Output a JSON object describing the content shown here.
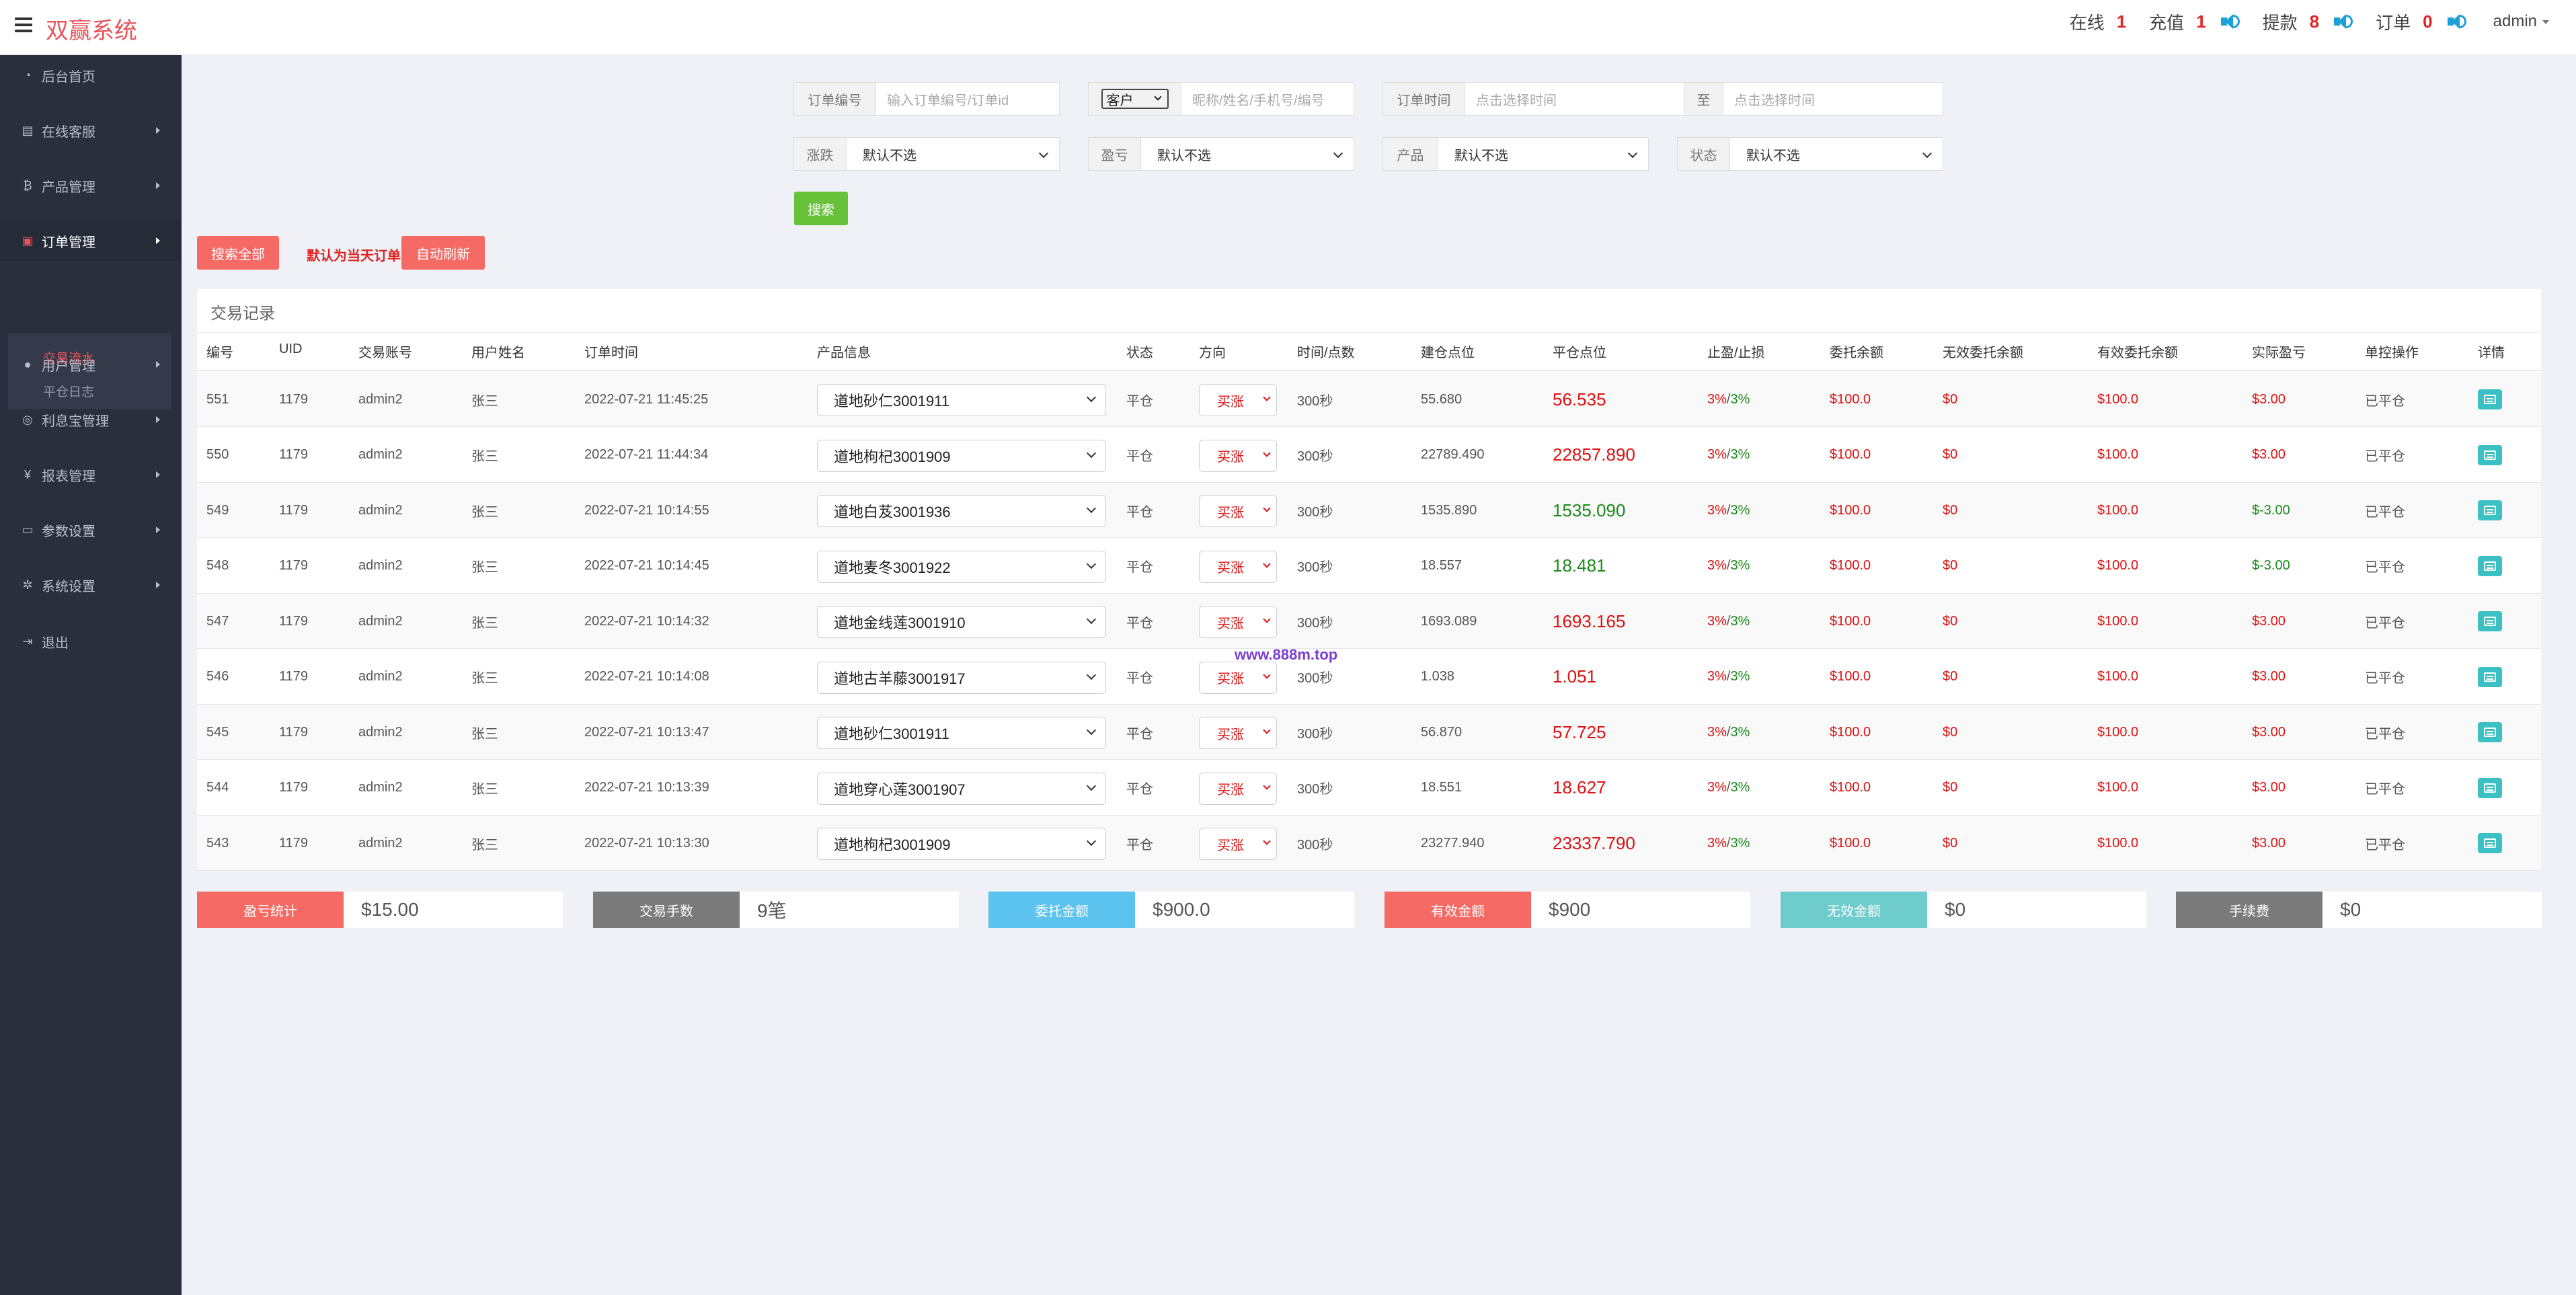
{
  "header": {
    "brand": "双赢系统",
    "stats": [
      {
        "label": "在线",
        "value": "1",
        "speaker": false
      },
      {
        "label": "充值",
        "value": "1",
        "speaker": true
      },
      {
        "label": "提款",
        "value": "8",
        "speaker": true
      },
      {
        "label": "订单",
        "value": "0",
        "speaker": true
      }
    ],
    "user": "admin"
  },
  "sidebar": {
    "items": [
      {
        "label": "后台首页",
        "icon": "dashboard-icon"
      },
      {
        "label": "在线客服",
        "icon": "book-icon"
      },
      {
        "label": "产品管理",
        "icon": "bitcoin-icon"
      },
      {
        "label": "订单管理",
        "icon": "copy-icon"
      },
      {
        "label": "用户管理",
        "icon": "user-icon"
      },
      {
        "label": "利息宝管理",
        "icon": "globe-icon"
      },
      {
        "label": "报表管理",
        "icon": "yen-icon"
      },
      {
        "label": "参数设置",
        "icon": "file-icon"
      },
      {
        "label": "系统设置",
        "icon": "cogs-icon"
      },
      {
        "label": "退出",
        "icon": "signout-icon"
      }
    ],
    "submenu": [
      "交易流水",
      "平仓日志"
    ]
  },
  "filters": {
    "order_no_label": "订单编号",
    "order_no_placeholder": "输入订单编号/订单id",
    "customer_select": "客户",
    "customer_placeholder": "昵称/姓名/手机号/编号",
    "order_time_label": "订单时间",
    "time_start_placeholder": "点击选择时间",
    "to_label": "至",
    "time_end_placeholder": "点击选择时间",
    "updown_label": "涨跌",
    "updown_value": "默认不选",
    "profit_label": "盈亏",
    "profit_value": "默认不选",
    "product_label": "产品",
    "product_value": "默认不选",
    "status_label": "状态",
    "status_value": "默认不选",
    "search_button": "搜索",
    "search_all_button": "搜索全部",
    "default_note": "默认为当天订单",
    "auto_refresh_button": "自动刷新"
  },
  "table": {
    "title": "交易记录",
    "headers": [
      "编号",
      "UID",
      "交易账号",
      "用户姓名",
      "订单时间",
      "产品信息",
      "状态",
      "方向",
      "时间/点数",
      "建仓点位",
      "平仓点位",
      "止盈/止损",
      "委托余额",
      "无效委托余额",
      "有效委托余额",
      "实际盈亏",
      "单控操作",
      "详情"
    ],
    "rows": [
      {
        "id": "551",
        "uid": "1179",
        "account": "admin2",
        "name": "张三",
        "time": "2022-07-21 11:45:25",
        "product": "道地砂仁3001911",
        "status": "平仓",
        "direction": "买涨",
        "duration": "300秒",
        "open": "55.680",
        "close": "56.535",
        "close_color": "red",
        "tp_sl_a": "3%",
        "tp_sl_b": "3%",
        "entrust": "$100.0",
        "invalid": "$0",
        "valid": "$100.0",
        "pnl": "$3.00",
        "pnl_color": "red",
        "op": "已平仓"
      },
      {
        "id": "550",
        "uid": "1179",
        "account": "admin2",
        "name": "张三",
        "time": "2022-07-21 11:44:34",
        "product": "道地枸杞3001909",
        "status": "平仓",
        "direction": "买涨",
        "duration": "300秒",
        "open": "22789.490",
        "close": "22857.890",
        "close_color": "red",
        "tp_sl_a": "3%",
        "tp_sl_b": "3%",
        "entrust": "$100.0",
        "invalid": "$0",
        "valid": "$100.0",
        "pnl": "$3.00",
        "pnl_color": "red",
        "op": "已平仓"
      },
      {
        "id": "549",
        "uid": "1179",
        "account": "admin2",
        "name": "张三",
        "time": "2022-07-21 10:14:55",
        "product": "道地白芨3001936",
        "status": "平仓",
        "direction": "买涨",
        "duration": "300秒",
        "open": "1535.890",
        "close": "1535.090",
        "close_color": "green",
        "tp_sl_a": "3%",
        "tp_sl_b": "3%",
        "entrust": "$100.0",
        "invalid": "$0",
        "valid": "$100.0",
        "pnl": "$-3.00",
        "pnl_color": "green",
        "op": "已平仓"
      },
      {
        "id": "548",
        "uid": "1179",
        "account": "admin2",
        "name": "张三",
        "time": "2022-07-21 10:14:45",
        "product": "道地麦冬3001922",
        "status": "平仓",
        "direction": "买涨",
        "duration": "300秒",
        "open": "18.557",
        "close": "18.481",
        "close_color": "green",
        "tp_sl_a": "3%",
        "tp_sl_b": "3%",
        "entrust": "$100.0",
        "invalid": "$0",
        "valid": "$100.0",
        "pnl": "$-3.00",
        "pnl_color": "green",
        "op": "已平仓"
      },
      {
        "id": "547",
        "uid": "1179",
        "account": "admin2",
        "name": "张三",
        "time": "2022-07-21 10:14:32",
        "product": "道地金线莲3001910",
        "status": "平仓",
        "direction": "买涨",
        "duration": "300秒",
        "open": "1693.089",
        "close": "1693.165",
        "close_color": "red",
        "tp_sl_a": "3%",
        "tp_sl_b": "3%",
        "entrust": "$100.0",
        "invalid": "$0",
        "valid": "$100.0",
        "pnl": "$3.00",
        "pnl_color": "red",
        "op": "已平仓"
      },
      {
        "id": "546",
        "uid": "1179",
        "account": "admin2",
        "name": "张三",
        "time": "2022-07-21 10:14:08",
        "product": "道地古羊藤3001917",
        "status": "平仓",
        "direction": "买涨",
        "duration": "300秒",
        "open": "1.038",
        "close": "1.051",
        "close_color": "red",
        "tp_sl_a": "3%",
        "tp_sl_b": "3%",
        "entrust": "$100.0",
        "invalid": "$0",
        "valid": "$100.0",
        "pnl": "$3.00",
        "pnl_color": "red",
        "op": "已平仓"
      },
      {
        "id": "545",
        "uid": "1179",
        "account": "admin2",
        "name": "张三",
        "time": "2022-07-21 10:13:47",
        "product": "道地砂仁3001911",
        "status": "平仓",
        "direction": "买涨",
        "duration": "300秒",
        "open": "56.870",
        "close": "57.725",
        "close_color": "red",
        "tp_sl_a": "3%",
        "tp_sl_b": "3%",
        "entrust": "$100.0",
        "invalid": "$0",
        "valid": "$100.0",
        "pnl": "$3.00",
        "pnl_color": "red",
        "op": "已平仓"
      },
      {
        "id": "544",
        "uid": "1179",
        "account": "admin2",
        "name": "张三",
        "time": "2022-07-21 10:13:39",
        "product": "道地穿心莲3001907",
        "status": "平仓",
        "direction": "买涨",
        "duration": "300秒",
        "open": "18.551",
        "close": "18.627",
        "close_color": "red",
        "tp_sl_a": "3%",
        "tp_sl_b": "3%",
        "entrust": "$100.0",
        "invalid": "$0",
        "valid": "$100.0",
        "pnl": "$3.00",
        "pnl_color": "red",
        "op": "已平仓"
      },
      {
        "id": "543",
        "uid": "1179",
        "account": "admin2",
        "name": "张三",
        "time": "2022-07-21 10:13:30",
        "product": "道地枸杞3001909",
        "status": "平仓",
        "direction": "买涨",
        "duration": "300秒",
        "open": "23277.940",
        "close": "23337.790",
        "close_color": "red",
        "tp_sl_a": "3%",
        "tp_sl_b": "3%",
        "entrust": "$100.0",
        "invalid": "$0",
        "valid": "$100.0",
        "pnl": "$3.00",
        "pnl_color": "red",
        "op": "已平仓"
      }
    ]
  },
  "watermark": "www.888m.top",
  "summary": [
    {
      "label": "盈亏统计",
      "value": "$15.00",
      "color": "#f56a65"
    },
    {
      "label": "交易手数",
      "value": "9笔",
      "color": "#7b7b7b"
    },
    {
      "label": "委托金额",
      "value": "$900.0",
      "color": "#5bc3ee"
    },
    {
      "label": "有效金额",
      "value": "$900",
      "color": "#f56a65"
    },
    {
      "label": "无效金额",
      "value": "$0",
      "color": "#6fcccc"
    },
    {
      "label": "手续费",
      "value": "$0",
      "color": "#7b7b7b"
    }
  ]
}
